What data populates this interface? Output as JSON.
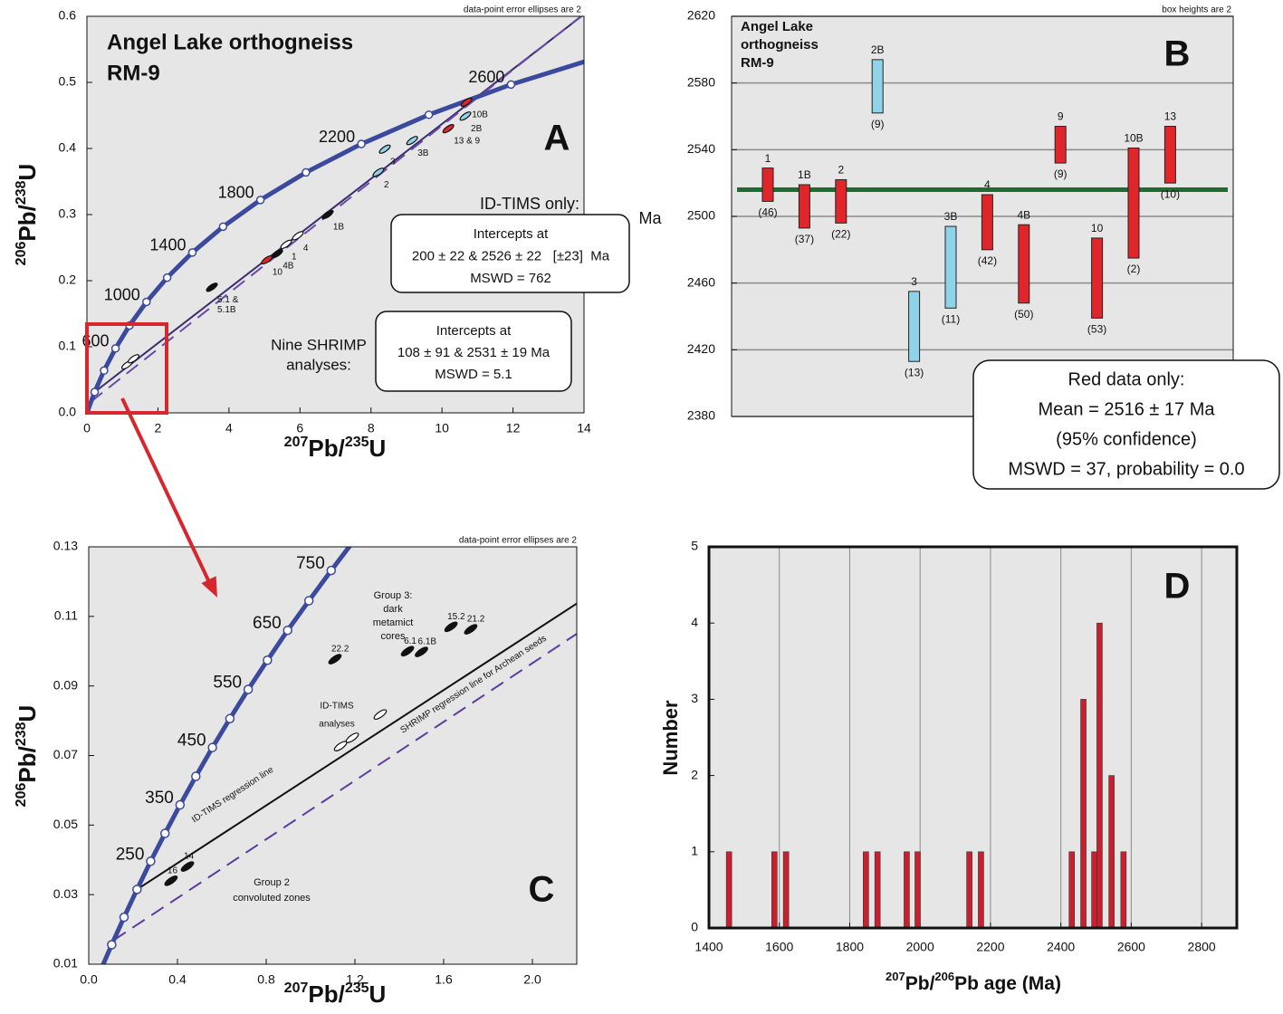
{
  "chart_data": [
    {
      "type": "concordia",
      "panel": "A",
      "title": [
        "Angel Lake orthogneiss",
        "RM-9"
      ],
      "note": "data-point error ellipses are 2",
      "x_label": [
        "207",
        "Pb/",
        "235",
        "U"
      ],
      "y_label": [
        "206",
        "Pb/",
        "238",
        "U"
      ],
      "xlim": [
        0,
        14
      ],
      "xticks": [
        0,
        2,
        4,
        6,
        8,
        10,
        12,
        14
      ],
      "ylim": [
        0,
        0.6
      ],
      "yticks": [
        {
          "value": 0,
          "label": "0.0"
        },
        0.1,
        0.2,
        0.3,
        0.4,
        0.5,
        0.6
      ],
      "concordia": {
        "color": "#3b4a9c",
        "x": [
          0,
          0.2177,
          0.4828,
          0.8055,
          1.1987,
          1.6774,
          2.2603,
          2.9702,
          3.8349,
          4.8866,
          6.1682,
          7.7288,
          9.63,
          11.945,
          14.76
        ],
        "y": [
          0,
          0.0315,
          0.064,
          0.0975,
          0.1321,
          0.1678,
          0.2046,
          0.2426,
          0.2817,
          0.3221,
          0.3638,
          0.4068,
          0.4511,
          0.4968,
          0.5438
        ],
        "labels": [
          null,
          null,
          null,
          "600",
          null,
          "1000",
          null,
          "1400",
          null,
          "1800",
          null,
          "2200",
          null,
          "2600",
          null
        ]
      },
      "lines": [
        {
          "color": "#3a2d6e",
          "dash": false,
          "x": [
            0.2177,
            14
          ],
          "y": [
            0.0315,
            0.603
          ]
        },
        {
          "color": "#6a4aa8",
          "dash": true,
          "x": [
            0.1123,
            14
          ],
          "y": [
            0.0169,
            0.6036
          ]
        }
      ],
      "points": {
        "x": [
          3.52,
          5.07,
          5.36,
          5.61,
          5.94,
          6.78,
          8.39,
          9.16,
          8.21,
          10.18,
          10.66,
          10.69,
          1.135,
          1.314
        ],
        "y": [
          0.19,
          0.2315,
          0.241,
          0.255,
          0.268,
          0.3,
          0.399,
          0.412,
          0.364,
          0.43,
          0.449,
          0.47,
          0.0727,
          0.0818
        ],
        "labels": [
          [
            "5.1 &",
            "5.1B"
          ],
          "10",
          "4B",
          "1",
          "4",
          "1B",
          "3",
          "3B",
          "2",
          "13 & 9",
          "2B",
          "10B",
          null,
          null
        ],
        "colors": [
          "#111111",
          "#e0262b",
          "#111111",
          "#ffffff",
          "#ffffff",
          "#111111",
          "#8fd3e8",
          "#8fd3e8",
          "#8fd3e8",
          "#e0262b",
          "#8fd3e8",
          "#e0262b",
          "#ffffff",
          "#ffffff"
        ]
      },
      "annotations": [
        {
          "text": [
            "ID-TIMS only:"
          ],
          "color": "#333333"
        },
        {
          "text": [
            "Intercepts at",
            "200 ± 22 & 2526 ± 22   [±23]  Ma",
            "MSWD = 762"
          ],
          "color": "#111111",
          "boxed": true
        },
        {
          "text": [
            "Nine SHRIMP",
            "analyses:"
          ],
          "color": "#555555"
        },
        {
          "text": [
            "Intercepts at",
            "108 ± 91 & 2531 ± 19 Ma",
            "MSWD = 5.1"
          ],
          "color": "#111111",
          "boxed": true
        },
        {
          "text": [
            "Ma"
          ],
          "color": "#333333"
        }
      ]
    },
    {
      "type": "floating_bar",
      "panel": "B",
      "title": [
        "Angel Lake",
        "orthogneiss",
        "RM-9"
      ],
      "note": "box heights are 2",
      "ylim": [
        2380,
        2620
      ],
      "yticks": [
        2380,
        2420,
        2460,
        2500,
        2540,
        2580,
        2620
      ],
      "grid": "y",
      "categories": [
        "1",
        "1B",
        "2",
        "2B",
        "3",
        "3B",
        "4",
        "4B",
        "9",
        "10",
        "10B",
        "13"
      ],
      "low": [
        2509,
        2493,
        2496,
        2562,
        2413,
        2445,
        2480,
        2448,
        2532,
        2439,
        2475,
        2520
      ],
      "high": [
        2529,
        2519,
        2522,
        2594,
        2455,
        2494,
        2513,
        2495,
        2554,
        2487,
        2541,
        2554
      ],
      "colors": [
        "#e0262b",
        "#e0262b",
        "#e0262b",
        "#8fd3e8",
        "#8fd3e8",
        "#8fd3e8",
        "#e0262b",
        "#e0262b",
        "#e0262b",
        "#e0262b",
        "#e0262b",
        "#e0262b"
      ],
      "n_labels": [
        "(46)",
        "(37)",
        "(22)",
        "(9)",
        "(13)",
        "(11)",
        "(42)",
        "(50)",
        "(9)",
        "(53)",
        "(2)",
        "(10)"
      ],
      "mean": {
        "value": 2516,
        "color": "#1e6b34"
      },
      "annotations": [
        {
          "text": [
            "Red data only:",
            "Mean = 2516 ± 17 Ma",
            "(95% confidence)",
            "MSWD = 37, probability = 0.0"
          ],
          "color": "#111111",
          "boxed": true
        }
      ]
    },
    {
      "type": "concordia",
      "panel": "C",
      "note": "data-point error ellipses are 2",
      "x_label": [
        "207",
        "Pb/",
        "235",
        "U"
      ],
      "y_label": [
        "206",
        "Pb/",
        "238",
        "U"
      ],
      "xlim": [
        0,
        2.2
      ],
      "xticks": [
        {
          "value": 0,
          "label": "0.0"
        },
        0.4,
        0.8,
        1.2,
        1.6,
        {
          "value": 2,
          "label": "2.0"
        }
      ],
      "ylim": [
        0.01,
        0.13
      ],
      "yticks": [
        0.01,
        0.03,
        0.05,
        0.07,
        0.09,
        0.11,
        0.13
      ],
      "concordia": {
        "color": "#3b4a9c",
        "x": [
          0.0505,
          0.1035,
          0.1592,
          0.2177,
          0.2792,
          0.3438,
          0.4116,
          0.4828,
          0.5577,
          0.6363,
          0.7189,
          0.8056,
          0.8968,
          0.9926,
          1.0931,
          1.1987
        ],
        "y": [
          0.0078,
          0.0156,
          0.0235,
          0.0315,
          0.0396,
          0.0476,
          0.0558,
          0.064,
          0.0723,
          0.0806,
          0.089,
          0.0974,
          0.106,
          0.1145,
          0.1232,
          0.1321
        ],
        "labels": [
          null,
          null,
          null,
          null,
          "250",
          null,
          "350",
          null,
          "450",
          null,
          "550",
          null,
          "650",
          null,
          "750",
          null
        ]
      },
      "lines": [
        {
          "color": "#111111",
          "dash": false,
          "x": [
            0.2177,
            2.2
          ],
          "y": [
            0.0315,
            0.1137
          ]
        },
        {
          "color": "#5a3d9e",
          "dash": true,
          "x": [
            0.1123,
            2.2
          ],
          "y": [
            0.0169,
            0.105
          ]
        }
      ],
      "points": {
        "x": [
          1.633,
          1.722,
          1.437,
          1.5,
          1.11,
          0.445,
          0.371,
          1.135,
          1.188,
          1.314
        ],
        "y": [
          0.107,
          0.1063,
          0.1,
          0.0998,
          0.0977,
          0.0381,
          0.034,
          0.0727,
          0.0751,
          0.0818
        ],
        "labels": [
          "15.2",
          "21.2",
          "6.1",
          "6.1B",
          "22.2",
          "14",
          "16",
          null,
          null,
          null
        ],
        "colors": [
          "#111111",
          "#111111",
          "#111111",
          "#111111",
          "#111111",
          "#111111",
          "#111111",
          "#ffffff",
          "#ffffff",
          "#ffffff"
        ]
      },
      "annotations": [
        {
          "text": [
            "Group 3:",
            "dark",
            "metamict",
            "cores"
          ],
          "color": "#e0262b"
        },
        {
          "text": [
            "Group 2",
            "convoluted zones"
          ],
          "color": "#e0262b"
        },
        {
          "text": [
            "ID-TIMS",
            "analyses"
          ],
          "color": "#3a9a3a"
        },
        {
          "text": [
            "ID-TIMS regression line"
          ],
          "color": "#222222"
        },
        {
          "text": [
            "SHRIMP regression line for Archean seeds"
          ],
          "color": "#222222"
        }
      ]
    },
    {
      "type": "bar",
      "panel": "D",
      "x_label": [
        "207",
        "Pb/",
        "206",
        "Pb age (Ma)"
      ],
      "y_label": "Number",
      "x": [
        1457,
        1586,
        1619,
        1846,
        1879,
        1962,
        1993,
        2140,
        2173,
        2431,
        2464,
        2495,
        2510,
        2544,
        2578
      ],
      "values": [
        1,
        1,
        1,
        1,
        1,
        1,
        1,
        1,
        1,
        1,
        3,
        1,
        4,
        2,
        1
      ],
      "color": "#c8202f",
      "xlim": [
        1400,
        2900
      ],
      "xticks": [
        1400,
        1600,
        1800,
        2000,
        2200,
        2400,
        2600,
        2800
      ],
      "ylim": [
        0,
        5
      ],
      "yticks": [
        0,
        1,
        2,
        3,
        4,
        5
      ],
      "grid": "x"
    }
  ]
}
